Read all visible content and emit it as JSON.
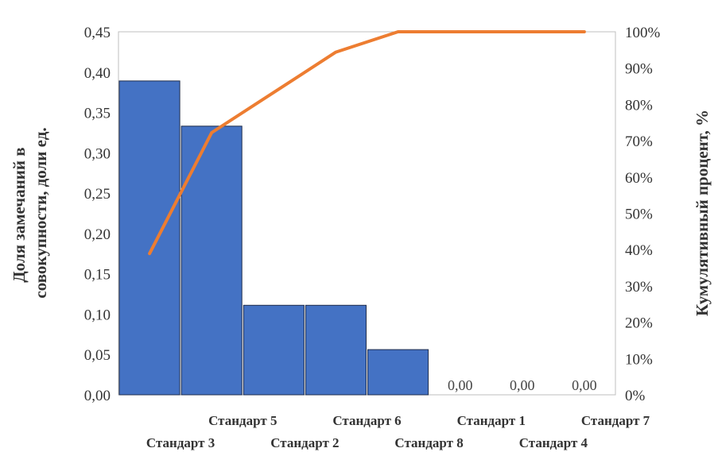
{
  "chart_data": {
    "type": "bar",
    "categories": [
      "Стандарт 3",
      "Стандарт 5",
      "Стандарт 2",
      "Стандарт 6",
      "Стандарт 8",
      "Стандарт 1",
      "Стандарт 4",
      "Стандарт 7"
    ],
    "values": [
      0.389,
      0.333,
      0.111,
      0.111,
      0.056,
      0.0,
      0.0,
      0.0
    ],
    "data_labels": [
      "",
      "",
      "",
      "",
      "",
      "0,00",
      "0,00",
      "0,00"
    ],
    "cumulative_series": {
      "type": "line",
      "axis": "right",
      "values": [
        38.9,
        72.2,
        83.3,
        94.4,
        100,
        100,
        100,
        100
      ]
    },
    "ylabel": "Доля замечаний в совокупности, доли ед.",
    "ylabel_lines": [
      "Доля замечаний в",
      "совокупности, доли ед."
    ],
    "y2label": "Кумулятивный процент, %",
    "ylim": [
      0,
      0.45
    ],
    "y2lim": [
      0,
      100
    ],
    "yticks": [
      "0,00",
      "0,05",
      "0,10",
      "0,15",
      "0,20",
      "0,25",
      "0,30",
      "0,35",
      "0,40",
      "0,45"
    ],
    "y2ticks": [
      "0%",
      "10%",
      "20%",
      "30%",
      "40%",
      "50%",
      "60%",
      "70%",
      "80%",
      "90%",
      "100%"
    ],
    "grid": false,
    "colors": {
      "bars": "#4472c4",
      "bar_edge": "#1f2d4d",
      "line": "#ed7d31"
    }
  }
}
